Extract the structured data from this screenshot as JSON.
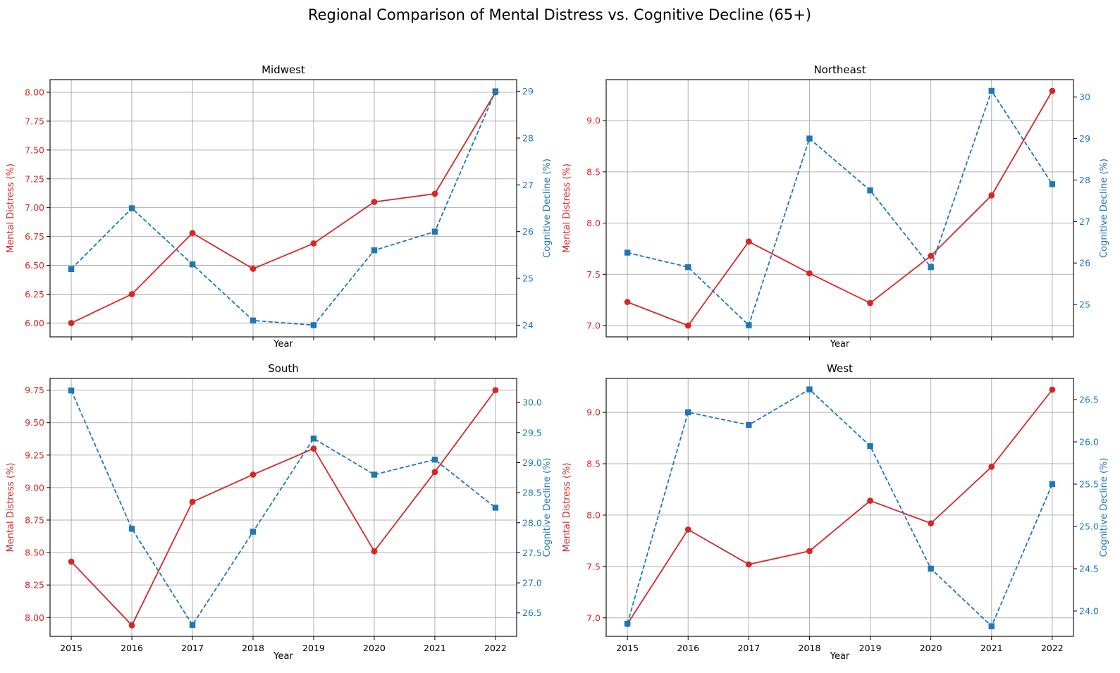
{
  "figure": {
    "title": "Regional Comparison of Mental Distress vs. Cognitive Decline (65+)"
  },
  "colors": {
    "mental": "#d62728",
    "cognitive": "#1f77b4",
    "grid": "#b0b0b0",
    "axis": "#000000"
  },
  "chart_data": [
    {
      "type": "line",
      "title": "Midwest",
      "xlabel": "Year",
      "ylabel_left": "Mental Distress (%)",
      "ylabel_right": "Cognitive Decline (%)",
      "x": [
        2015,
        2016,
        2017,
        2018,
        2019,
        2020,
        2021,
        2022
      ],
      "show_x_ticklabels": false,
      "grid": true,
      "left_axis": {
        "ylim": [
          5.88,
          8.11
        ],
        "ticks": [
          6.0,
          6.25,
          6.5,
          6.75,
          7.0,
          7.25,
          7.5,
          7.75,
          8.0
        ],
        "tick_labels": [
          "6.00",
          "6.25",
          "6.50",
          "6.75",
          "7.00",
          "7.25",
          "7.50",
          "7.75",
          "8.00"
        ]
      },
      "right_axis": {
        "ylim": [
          23.75,
          29.25
        ],
        "ticks": [
          24,
          25,
          26,
          27,
          28,
          29
        ],
        "tick_labels": [
          "24",
          "25",
          "26",
          "27",
          "28",
          "29"
        ]
      },
      "series": [
        {
          "name": "Mental Distress (%)",
          "axis": "left",
          "style": "solid",
          "marker": "circle",
          "values": [
            6.0,
            6.25,
            6.78,
            6.47,
            6.69,
            7.05,
            7.12,
            8.0
          ]
        },
        {
          "name": "Cognitive Decline (%)",
          "axis": "right",
          "style": "dashed",
          "marker": "square",
          "values": [
            25.2,
            26.5,
            25.3,
            24.1,
            24.0,
            25.6,
            26.0,
            29.0
          ]
        }
      ]
    },
    {
      "type": "line",
      "title": "Northeast",
      "xlabel": "Year",
      "ylabel_left": "Mental Distress (%)",
      "ylabel_right": "Cognitive Decline (%)",
      "x": [
        2015,
        2016,
        2017,
        2018,
        2019,
        2020,
        2021,
        2022
      ],
      "show_x_ticklabels": false,
      "grid": true,
      "left_axis": {
        "ylim": [
          6.89,
          9.4
        ],
        "ticks": [
          7.0,
          7.5,
          8.0,
          8.5,
          9.0
        ],
        "tick_labels": [
          "7.0",
          "7.5",
          "8.0",
          "8.5",
          "9.0"
        ]
      },
      "right_axis": {
        "ylim": [
          24.22,
          30.42
        ],
        "ticks": [
          25,
          26,
          27,
          28,
          29,
          30
        ],
        "tick_labels": [
          "25",
          "26",
          "27",
          "28",
          "29",
          "30"
        ]
      },
      "series": [
        {
          "name": "Mental Distress (%)",
          "axis": "left",
          "style": "solid",
          "marker": "circle",
          "values": [
            7.23,
            7.0,
            7.82,
            7.51,
            7.22,
            7.68,
            8.27,
            9.29
          ]
        },
        {
          "name": "Cognitive Decline (%)",
          "axis": "right",
          "style": "dashed",
          "marker": "square",
          "values": [
            26.25,
            25.9,
            24.5,
            29.0,
            27.75,
            25.9,
            30.15,
            27.9
          ]
        }
      ]
    },
    {
      "type": "line",
      "title": "South",
      "xlabel": "Year",
      "ylabel_left": "Mental Distress (%)",
      "ylabel_right": "Cognitive Decline (%)",
      "x": [
        2015,
        2016,
        2017,
        2018,
        2019,
        2020,
        2021,
        2022
      ],
      "show_x_ticklabels": true,
      "grid": true,
      "left_axis": {
        "ylim": [
          7.855,
          9.84
        ],
        "ticks": [
          8.0,
          8.25,
          8.5,
          8.75,
          9.0,
          9.25,
          9.5,
          9.75
        ],
        "tick_labels": [
          "8.00",
          "8.25",
          "8.50",
          "8.75",
          "9.00",
          "9.25",
          "9.50",
          "9.75"
        ]
      },
      "right_axis": {
        "ylim": [
          26.11,
          30.4
        ],
        "ticks": [
          26.5,
          27.0,
          27.5,
          28.0,
          28.5,
          29.0,
          29.5,
          30.0
        ],
        "tick_labels": [
          "26.5",
          "27.0",
          "27.5",
          "28.0",
          "28.5",
          "29.0",
          "29.5",
          "30.0"
        ]
      },
      "series": [
        {
          "name": "Mental Distress (%)",
          "axis": "left",
          "style": "solid",
          "marker": "circle",
          "values": [
            8.43,
            7.94,
            8.89,
            9.1,
            9.3,
            8.51,
            9.12,
            9.75
          ]
        },
        {
          "name": "Cognitive Decline (%)",
          "axis": "right",
          "style": "dashed",
          "marker": "square",
          "values": [
            30.2,
            27.9,
            26.3,
            27.85,
            29.4,
            28.8,
            29.05,
            28.25
          ]
        }
      ]
    },
    {
      "type": "line",
      "title": "West",
      "xlabel": "Year",
      "ylabel_left": "Mental Distress (%)",
      "ylabel_right": "Cognitive Decline (%)",
      "x": [
        2015,
        2016,
        2017,
        2018,
        2019,
        2020,
        2021,
        2022
      ],
      "show_x_ticklabels": true,
      "grid": true,
      "left_axis": {
        "ylim": [
          6.82,
          9.33
        ],
        "ticks": [
          7.0,
          7.5,
          8.0,
          8.5,
          9.0
        ],
        "tick_labels": [
          "7.0",
          "7.5",
          "8.0",
          "8.5",
          "9.0"
        ]
      },
      "right_axis": {
        "ylim": [
          23.7,
          26.75
        ],
        "ticks": [
          24.0,
          24.5,
          25.0,
          25.5,
          26.0,
          26.5
        ],
        "tick_labels": [
          "24.0",
          "24.5",
          "25.0",
          "25.5",
          "26.0",
          "26.5"
        ]
      },
      "series": [
        {
          "name": "Mental Distress (%)",
          "axis": "left",
          "style": "solid",
          "marker": "circle",
          "values": [
            6.94,
            7.86,
            7.52,
            7.65,
            8.14,
            7.92,
            8.47,
            9.22
          ]
        },
        {
          "name": "Cognitive Decline (%)",
          "axis": "right",
          "style": "dashed",
          "marker": "square",
          "values": [
            23.85,
            26.35,
            26.2,
            26.62,
            25.95,
            24.5,
            23.82,
            25.5
          ]
        }
      ]
    }
  ]
}
